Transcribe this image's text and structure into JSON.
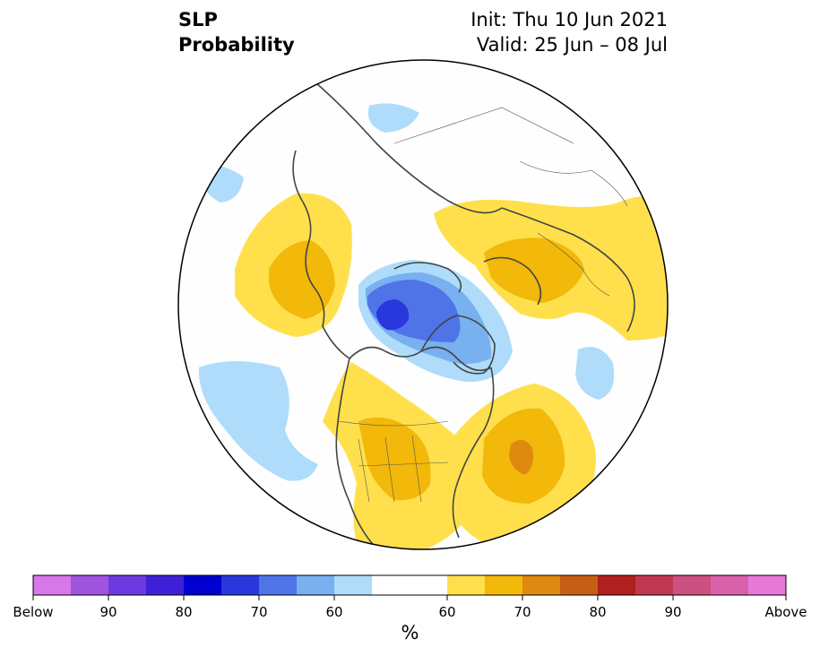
{
  "title": {
    "left_line1": "SLP",
    "left_line2": "Probability",
    "right_line1": "Init: Thu 10 Jun 2021",
    "right_line2": "Valid: 25 Jun – 08 Jul"
  },
  "colorbar": {
    "unit_label": "%",
    "tick_labels": [
      "Below",
      "90",
      "80",
      "70",
      "60",
      "60",
      "70",
      "80",
      "90",
      "Above"
    ],
    "colors": [
      "#d777ea",
      "#9f55e0",
      "#6c3ae0",
      "#3e20d6",
      "#0000d0",
      "#2838dc",
      "#4f74e8",
      "#78b0f0",
      "#aedcfa",
      "#ffffff",
      "#ffffff",
      "#ffe04c",
      "#f2b80a",
      "#de8a10",
      "#c85e16",
      "#b0201e",
      "#c03850",
      "#cc5080",
      "#da60ac",
      "#e878d8"
    ]
  },
  "map": {
    "projection": "north-polar-stereographic",
    "colors": {
      "blue_light": "#aedcfa",
      "blue_mid": "#78b0f0",
      "blue_strong": "#4f74e8",
      "blue_deep": "#2838dc",
      "yellow": "#ffe04c",
      "orange": "#f2b80a",
      "dark_orange": "#de8a10",
      "coast": "#444444"
    }
  }
}
